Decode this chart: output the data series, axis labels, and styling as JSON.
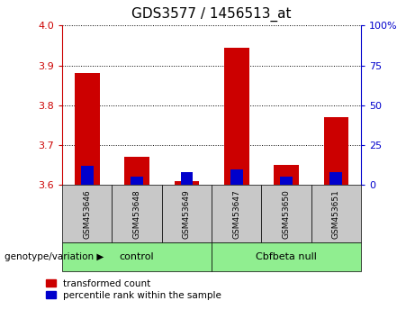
{
  "title": "GDS3577 / 1456513_at",
  "samples": [
    "GSM453646",
    "GSM453648",
    "GSM453649",
    "GSM453647",
    "GSM453650",
    "GSM453651"
  ],
  "transformed_counts": [
    3.88,
    3.67,
    3.61,
    3.945,
    3.65,
    3.77
  ],
  "percentile_ranks": [
    12,
    5,
    8,
    10,
    5,
    8
  ],
  "ylim_left": [
    3.6,
    4.0
  ],
  "ylim_right": [
    0,
    100
  ],
  "yticks_left": [
    3.6,
    3.7,
    3.8,
    3.9,
    4.0
  ],
  "yticks_right": [
    0,
    25,
    50,
    75,
    100
  ],
  "left_color": "#CC0000",
  "right_color": "#0000CC",
  "bar_width": 0.5,
  "blue_bar_width": 0.25,
  "legend_red": "transformed count",
  "legend_blue": "percentile rank within the sample",
  "xlabel_group": "genotype/variation",
  "sample_bg": "#C8C8C8",
  "group_bg": "#90EE90",
  "title_fontsize": 11,
  "group_spans": [
    [
      0,
      2,
      "control"
    ],
    [
      3,
      5,
      "Cbfbeta null"
    ]
  ]
}
